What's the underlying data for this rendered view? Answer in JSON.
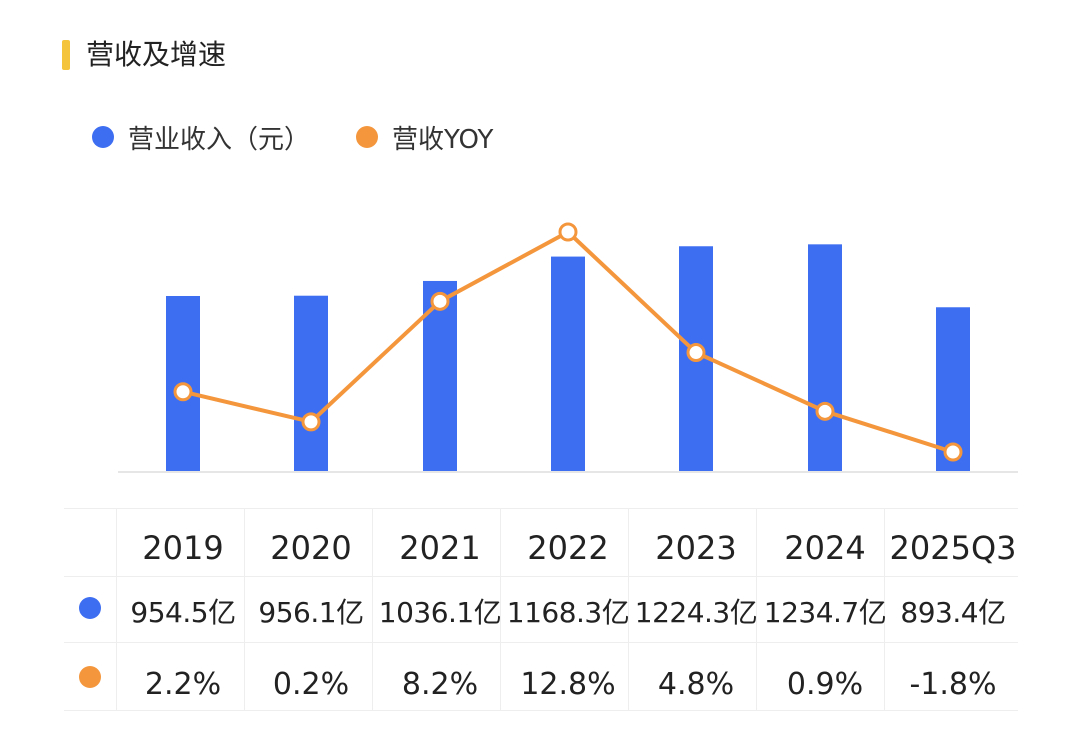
{
  "header": {
    "title": "营收及增速"
  },
  "colors": {
    "accent": "#f5c43d",
    "bar": "#3d6ef2",
    "line": "#f4963c",
    "axis": "#e6e6e6"
  },
  "legend": {
    "revenue_label": "营业收入（元）",
    "yoy_label": "营收YOY"
  },
  "chart_data": {
    "type": "bar",
    "categories": [
      "2019",
      "2020",
      "2021",
      "2022",
      "2023",
      "2024",
      "2025Q3"
    ],
    "series": [
      {
        "name": "营业收入（元）",
        "type": "bar",
        "values": [
          954.5,
          956.1,
          1036.1,
          1168.3,
          1224.3,
          1234.7,
          893.4
        ]
      },
      {
        "name": "营收YOY",
        "type": "line",
        "values": [
          2.2,
          0.2,
          8.2,
          12.8,
          4.8,
          0.9,
          -1.8
        ]
      }
    ],
    "ylim_bar": [
      0,
      1300
    ],
    "ylim_line": [
      -3,
      13.5
    ],
    "grid": false,
    "legend_position": "top-left"
  },
  "table": {
    "years": [
      "2019",
      "2020",
      "2021",
      "2022",
      "2023",
      "2024",
      "2025Q3"
    ],
    "revenue": [
      "954.5亿",
      "956.1亿",
      "1036.1亿",
      "1168.3亿",
      "1224.3亿",
      "1234.7亿",
      "893.4亿"
    ],
    "yoy": [
      "2.2%",
      "0.2%",
      "8.2%",
      "12.8%",
      "4.8%",
      "0.9%",
      "-1.8%"
    ]
  }
}
